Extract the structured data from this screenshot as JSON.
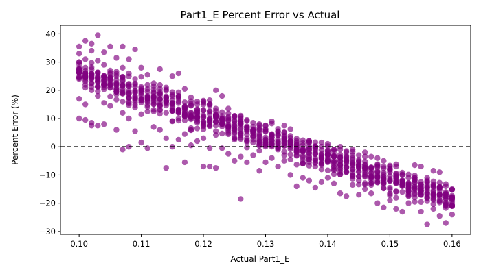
{
  "chart_data": {
    "type": "scatter",
    "title": "Part1_E Percent Error vs Actual",
    "xlabel": "Actual Part1_E",
    "ylabel": "Percent Error (%)",
    "xlim": [
      0.097,
      0.163
    ],
    "ylim": [
      -31,
      43
    ],
    "x_ticks": [
      0.1,
      0.11,
      0.12,
      0.13,
      0.14,
      0.15,
      0.16
    ],
    "x_tick_labels": [
      "0.10",
      "0.11",
      "0.12",
      "0.13",
      "0.14",
      "0.15",
      "0.16"
    ],
    "y_ticks": [
      -30,
      -20,
      -10,
      0,
      10,
      20,
      30,
      40
    ],
    "y_tick_labels": [
      "−30",
      "−20",
      "−10",
      "0",
      "10",
      "20",
      "30",
      "40"
    ],
    "reference_line": {
      "y": 0,
      "style": "dashed",
      "color": "#000000"
    },
    "marker_color": "#800080",
    "marker_opacity": 0.65,
    "grid": false,
    "legend": "none",
    "trend": {
      "x_start": 0.1,
      "x_end": 0.16,
      "y_at_start": 26,
      "y_at_end": -19,
      "spread": 7
    },
    "points": [
      [
        0.1,
        35.5
      ],
      [
        0.1,
        33.0
      ],
      [
        0.1,
        30.0
      ],
      [
        0.1,
        27.5
      ],
      [
        0.1,
        24.0
      ],
      [
        0.1,
        17.0
      ],
      [
        0.1,
        10.0
      ],
      [
        0.101,
        37.5
      ],
      [
        0.101,
        31.0
      ],
      [
        0.101,
        28.0
      ],
      [
        0.101,
        22.0
      ],
      [
        0.101,
        15.0
      ],
      [
        0.101,
        9.5
      ],
      [
        0.102,
        36.5
      ],
      [
        0.102,
        34.0
      ],
      [
        0.102,
        26.0
      ],
      [
        0.102,
        20.0
      ],
      [
        0.102,
        8.5
      ],
      [
        0.102,
        7.5
      ],
      [
        0.103,
        39.5
      ],
      [
        0.103,
        30.5
      ],
      [
        0.103,
        24.5
      ],
      [
        0.103,
        18.0
      ],
      [
        0.103,
        7.5
      ],
      [
        0.104,
        33.5
      ],
      [
        0.104,
        29.0
      ],
      [
        0.104,
        22.5
      ],
      [
        0.104,
        15.5
      ],
      [
        0.104,
        8.0
      ],
      [
        0.105,
        35.5
      ],
      [
        0.105,
        27.0
      ],
      [
        0.105,
        21.0
      ],
      [
        0.105,
        14.5
      ],
      [
        0.106,
        31.5
      ],
      [
        0.106,
        25.0
      ],
      [
        0.106,
        19.5
      ],
      [
        0.106,
        6.0
      ],
      [
        0.107,
        35.5
      ],
      [
        0.107,
        28.0
      ],
      [
        0.107,
        20.5
      ],
      [
        0.107,
        12.0
      ],
      [
        0.107,
        -1.0
      ],
      [
        0.108,
        31.0
      ],
      [
        0.108,
        26.0
      ],
      [
        0.108,
        17.5
      ],
      [
        0.108,
        10.0
      ],
      [
        0.108,
        0.0
      ],
      [
        0.109,
        34.5
      ],
      [
        0.109,
        24.0
      ],
      [
        0.109,
        17.0
      ],
      [
        0.109,
        5.5
      ],
      [
        0.11,
        28.0
      ],
      [
        0.11,
        20.0
      ],
      [
        0.11,
        11.5
      ],
      [
        0.11,
        1.5
      ],
      [
        0.111,
        25.5
      ],
      [
        0.111,
        18.0
      ],
      [
        0.111,
        12.5
      ],
      [
        0.111,
        -0.5
      ],
      [
        0.112,
        22.5
      ],
      [
        0.112,
        15.0
      ],
      [
        0.112,
        7.0
      ],
      [
        0.113,
        27.5
      ],
      [
        0.113,
        19.5
      ],
      [
        0.113,
        13.0
      ],
      [
        0.113,
        6.0
      ],
      [
        0.114,
        21.0
      ],
      [
        0.114,
        12.0
      ],
      [
        0.114,
        3.0
      ],
      [
        0.114,
        -7.5
      ],
      [
        0.115,
        25.0
      ],
      [
        0.115,
        16.5
      ],
      [
        0.115,
        9.0
      ],
      [
        0.115,
        0.0
      ],
      [
        0.116,
        26.0
      ],
      [
        0.116,
        18.0
      ],
      [
        0.116,
        10.0
      ],
      [
        0.116,
        2.5
      ],
      [
        0.117,
        20.5
      ],
      [
        0.117,
        13.5
      ],
      [
        0.117,
        4.5
      ],
      [
        0.117,
        -5.5
      ],
      [
        0.118,
        17.5
      ],
      [
        0.118,
        11.0
      ],
      [
        0.118,
        6.0
      ],
      [
        0.118,
        0.5
      ],
      [
        0.119,
        16.0
      ],
      [
        0.119,
        9.0
      ],
      [
        0.119,
        2.0
      ],
      [
        0.12,
        15.5
      ],
      [
        0.12,
        8.0
      ],
      [
        0.12,
        3.0
      ],
      [
        0.12,
        -7.0
      ],
      [
        0.121,
        16.5
      ],
      [
        0.121,
        10.0
      ],
      [
        0.121,
        -0.5
      ],
      [
        0.121,
        -7.0
      ],
      [
        0.122,
        20.0
      ],
      [
        0.122,
        13.5
      ],
      [
        0.122,
        5.5
      ],
      [
        0.122,
        -7.5
      ],
      [
        0.123,
        18.0
      ],
      [
        0.123,
        8.5
      ],
      [
        0.123,
        -0.5
      ],
      [
        0.124,
        13.5
      ],
      [
        0.124,
        5.0
      ],
      [
        0.124,
        -2.5
      ],
      [
        0.125,
        9.0
      ],
      [
        0.125,
        2.5
      ],
      [
        0.125,
        -5.0
      ],
      [
        0.126,
        11.0
      ],
      [
        0.126,
        4.0
      ],
      [
        0.126,
        -3.5
      ],
      [
        0.126,
        -18.5
      ],
      [
        0.127,
        9.5
      ],
      [
        0.127,
        2.0
      ],
      [
        0.127,
        -5.5
      ],
      [
        0.128,
        8.5
      ],
      [
        0.128,
        3.5
      ],
      [
        0.128,
        -3.0
      ],
      [
        0.129,
        8.0
      ],
      [
        0.129,
        1.0
      ],
      [
        0.129,
        -8.5
      ],
      [
        0.13,
        7.5
      ],
      [
        0.13,
        0.5
      ],
      [
        0.13,
        -5.5
      ],
      [
        0.131,
        9.0
      ],
      [
        0.131,
        2.0
      ],
      [
        0.131,
        -4.0
      ],
      [
        0.132,
        5.5
      ],
      [
        0.132,
        -1.0
      ],
      [
        0.132,
        -7.0
      ],
      [
        0.133,
        7.5
      ],
      [
        0.133,
        2.5
      ],
      [
        0.133,
        -5.0
      ],
      [
        0.134,
        1.5
      ],
      [
        0.134,
        -4.5
      ],
      [
        0.134,
        -10.0
      ],
      [
        0.135,
        2.0
      ],
      [
        0.135,
        -3.0
      ],
      [
        0.135,
        -14.0
      ],
      [
        0.136,
        0.5
      ],
      [
        0.136,
        -6.0
      ],
      [
        0.136,
        -11.0
      ],
      [
        0.137,
        2.0
      ],
      [
        0.137,
        -4.5
      ],
      [
        0.137,
        -12.0
      ],
      [
        0.138,
        0.0
      ],
      [
        0.138,
        -7.0
      ],
      [
        0.138,
        -14.5
      ],
      [
        0.139,
        1.5
      ],
      [
        0.139,
        -6.0
      ],
      [
        0.139,
        -12.5
      ],
      [
        0.14,
        1.0
      ],
      [
        0.14,
        -5.5
      ],
      [
        0.14,
        -11.0
      ],
      [
        0.141,
        -1.0
      ],
      [
        0.141,
        -8.0
      ],
      [
        0.141,
        -13.0
      ],
      [
        0.142,
        0.0
      ],
      [
        0.142,
        -6.5
      ],
      [
        0.142,
        -16.5
      ],
      [
        0.143,
        -1.5
      ],
      [
        0.143,
        -9.0
      ],
      [
        0.143,
        -17.5
      ],
      [
        0.144,
        -1.0
      ],
      [
        0.144,
        -8.0
      ],
      [
        0.144,
        -13.5
      ],
      [
        0.145,
        -3.0
      ],
      [
        0.145,
        -10.5
      ],
      [
        0.145,
        -17.0
      ],
      [
        0.146,
        -2.0
      ],
      [
        0.146,
        -9.0
      ],
      [
        0.146,
        -15.0
      ],
      [
        0.147,
        -3.5
      ],
      [
        0.147,
        -11.0
      ],
      [
        0.147,
        -16.5
      ],
      [
        0.148,
        -4.0
      ],
      [
        0.148,
        -12.0
      ],
      [
        0.148,
        -20.0
      ],
      [
        0.149,
        -5.0
      ],
      [
        0.149,
        -13.0
      ],
      [
        0.149,
        -21.5
      ],
      [
        0.15,
        -7.0
      ],
      [
        0.15,
        -14.5
      ],
      [
        0.15,
        -19.0
      ],
      [
        0.151,
        -7.0
      ],
      [
        0.151,
        -13.0
      ],
      [
        0.151,
        -22.0
      ],
      [
        0.152,
        -10.0
      ],
      [
        0.152,
        -16.0
      ],
      [
        0.152,
        -23.0
      ],
      [
        0.153,
        -11.0
      ],
      [
        0.153,
        -17.5
      ],
      [
        0.153,
        -20.0
      ],
      [
        0.154,
        -6.5
      ],
      [
        0.154,
        -14.0
      ],
      [
        0.154,
        -19.5
      ],
      [
        0.155,
        -7.0
      ],
      [
        0.155,
        -15.5
      ],
      [
        0.155,
        -23.0
      ],
      [
        0.156,
        -11.0
      ],
      [
        0.156,
        -18.0
      ],
      [
        0.156,
        -27.5
      ],
      [
        0.157,
        -8.5
      ],
      [
        0.157,
        -16.0
      ],
      [
        0.157,
        -22.0
      ],
      [
        0.158,
        -9.0
      ],
      [
        0.158,
        -17.0
      ],
      [
        0.158,
        -24.5
      ],
      [
        0.159,
        -14.0
      ],
      [
        0.159,
        -20.0
      ],
      [
        0.159,
        -27.0
      ],
      [
        0.16,
        -15.0
      ],
      [
        0.16,
        -21.0
      ],
      [
        0.16,
        -24.0
      ]
    ]
  }
}
